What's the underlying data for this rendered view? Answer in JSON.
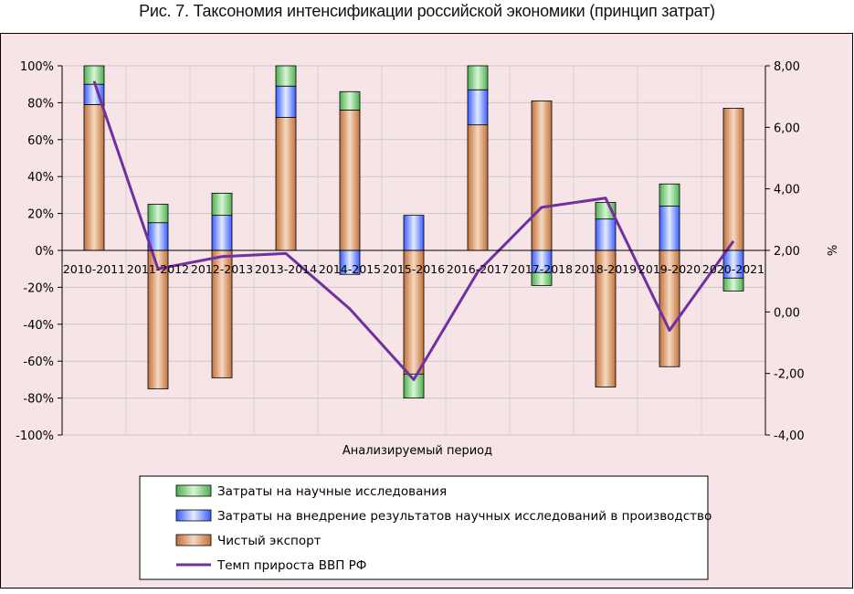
{
  "figure_title": "Рис. 7. Таксономия интенсификации российской экономики (принцип затрат)",
  "colors": {
    "panel_bg": "#f6e4e6",
    "plot_bg": "#f6e4e6",
    "science": "#4caf50",
    "science_light": "#d9f5d5",
    "implementation": "#3a5bff",
    "implementation_light": "#e4ecff",
    "export": "#c07038",
    "export_light": "#f6d8c0",
    "gdp_line": "#7030a0"
  },
  "chart_data": {
    "type": "bar",
    "stacked": true,
    "xlabel": "Анализируемый период",
    "y_ticks": [
      "100%",
      "80%",
      "60%",
      "40%",
      "20%",
      "0%",
      "-20%",
      "-40%",
      "-60%",
      "-80%",
      "-100%"
    ],
    "y2_ticks": [
      "8,00",
      "6,00",
      "4,00",
      "2,00",
      "0,00",
      "-2,00",
      "-4,00"
    ],
    "y2label": "%",
    "ylim": [
      -100,
      100
    ],
    "y2lim": [
      -4,
      8
    ],
    "grid": true,
    "legend_position": "bottom",
    "categories": [
      "2010-2011",
      "2011-2012",
      "2012-2013",
      "2013-2014",
      "2014-2015",
      "2015-2016",
      "2016-2017",
      "2017-2018",
      "2018-2019",
      "2019-2020",
      "2020-2021"
    ],
    "series": [
      {
        "name": "Затраты на научные исследования",
        "key": "science",
        "values": [
          10,
          10,
          12,
          11,
          10,
          -13,
          13,
          -7,
          9,
          12,
          -7
        ]
      },
      {
        "name": "Затраты на внедрение результатов научных исследований в производство",
        "key": "implementation",
        "values": [
          11,
          15,
          19,
          17,
          -13,
          19,
          19,
          -12,
          17,
          24,
          -15
        ]
      },
      {
        "name": "Чистый экспорт",
        "key": "export",
        "values": [
          79,
          -75,
          -69,
          72,
          76,
          -67,
          68,
          81,
          -74,
          -63,
          77
        ]
      },
      {
        "name": "Темп прироста ВВП РФ",
        "key": "gdp",
        "type": "line",
        "axis": "secondary",
        "values": [
          7.5,
          1.4,
          1.8,
          1.9,
          0.1,
          -2.2,
          1.3,
          3.4,
          3.7,
          -0.6,
          2.3
        ]
      }
    ]
  }
}
